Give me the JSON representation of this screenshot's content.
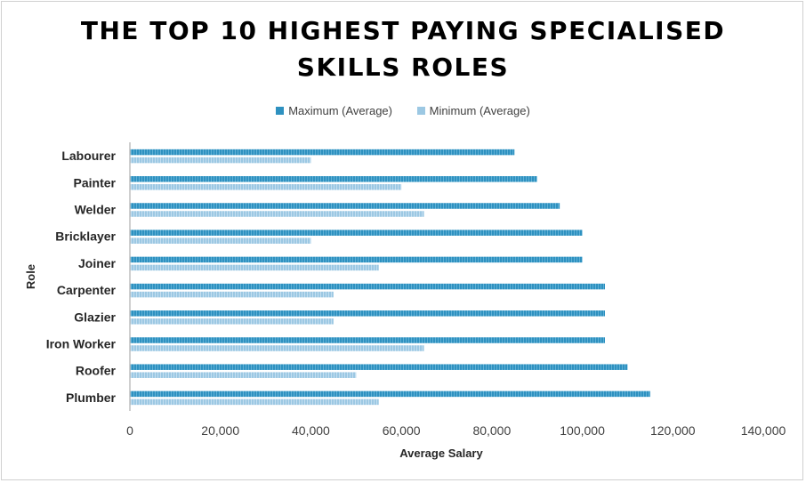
{
  "chart_data": {
    "type": "bar",
    "orientation": "horizontal",
    "title_line1": "THE TOP 10 HIGHEST PAYING SPECIALISED",
    "title_line2": "SKILLS ROLES",
    "xlabel": "Average Salary",
    "ylabel": "Role",
    "xlim": [
      0,
      140000
    ],
    "xticks": [
      "0",
      "20,000",
      "40,000",
      "60,000",
      "80,000",
      "100,000",
      "120,000",
      "140,000"
    ],
    "grid": false,
    "legend_position": "top",
    "categories": [
      "Labourer",
      "Painter",
      "Welder",
      "Bricklayer",
      "Joiner",
      "Carpenter",
      "Glazier",
      "Iron Worker",
      "Roofer",
      "Plumber"
    ],
    "series": [
      {
        "name": "Maximum (Average)",
        "color": "#2e91c0",
        "values": [
          85000,
          90000,
          95000,
          100000,
          100000,
          105000,
          105000,
          105000,
          110000,
          115000
        ]
      },
      {
        "name": "Minimum (Average)",
        "color": "#9cc8e3",
        "values": [
          40000,
          60000,
          65000,
          40000,
          55000,
          45000,
          45000,
          65000,
          50000,
          55000
        ]
      }
    ]
  }
}
